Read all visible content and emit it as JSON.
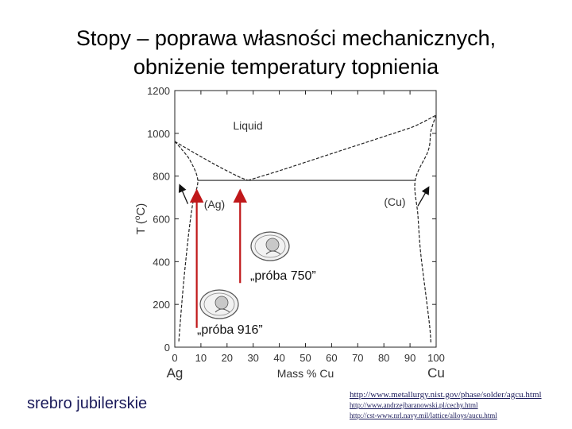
{
  "slide": {
    "title_line1": "Stopy – poprawa własności mechanicznych,",
    "title_line2": "obniżenie temperatury topnienia",
    "footer_text": "srebro jubilerskie",
    "links": [
      "http://www.metallurgy.nist.gov/phase/solder/agcu.html",
      "http://www.andrzejbaranowski.pl/cechy.html",
      "http://cst-www.nrl.navy.mil/lattice/alloys/aucu.html"
    ]
  },
  "chart_data": {
    "type": "phase-diagram",
    "xlabel": "Mass % Cu",
    "ylabel": "T (°C)",
    "ylabel_main": "T (",
    "ylabel_sup": "o",
    "ylabel_rest": "C)",
    "xlim": [
      0,
      100
    ],
    "ylim": [
      0,
      1200
    ],
    "x_ticks": [
      0,
      10,
      20,
      30,
      40,
      50,
      60,
      70,
      80,
      90,
      100
    ],
    "y_ticks": [
      0,
      200,
      400,
      600,
      800,
      1000,
      1200
    ],
    "x_end_labels": {
      "left": "Ag",
      "right": "Cu"
    },
    "region_labels": {
      "liquid": "Liquid",
      "ag": "(Ag)",
      "cu": "(Cu)"
    },
    "eutectic": {
      "composition": 28,
      "temperature": 780
    },
    "liquidus": [
      [
        0,
        962
      ],
      [
        8,
        905
      ],
      [
        16,
        850
      ],
      [
        24,
        800
      ],
      [
        28,
        780
      ],
      [
        40,
        825
      ],
      [
        55,
        885
      ],
      [
        70,
        945
      ],
      [
        85,
        1005
      ],
      [
        92,
        1035
      ],
      [
        100,
        1085
      ]
    ],
    "ag_solvus": [
      [
        0,
        962
      ],
      [
        3,
        920
      ],
      [
        6,
        870
      ],
      [
        8.8,
        780
      ],
      [
        7,
        680
      ],
      [
        5.5,
        550
      ],
      [
        4,
        380
      ],
      [
        3,
        250
      ],
      [
        2,
        100
      ],
      [
        1.5,
        20
      ]
    ],
    "cu_solvus": [
      [
        100,
        1085
      ],
      [
        98,
        1010
      ],
      [
        97,
        920
      ],
      [
        92,
        780
      ],
      [
        93,
        620
      ],
      [
        94,
        450
      ],
      [
        96,
        250
      ],
      [
        97.5,
        100
      ],
      [
        98,
        20
      ]
    ],
    "eutectic_line": [
      8.8,
      92
    ],
    "samples": [
      {
        "label": "„próba 750”",
        "composition": 25
      },
      {
        "label": "„próba 916”",
        "composition": 8.4
      }
    ],
    "arrow_color": "#c0181a"
  }
}
